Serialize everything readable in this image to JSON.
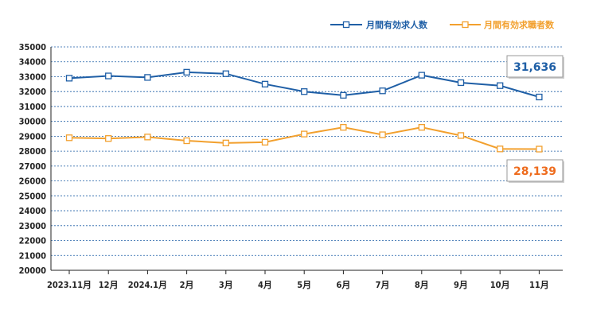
{
  "chart_data": {
    "type": "line",
    "categories": [
      "2023.11月",
      "12月",
      "2024.1月",
      "2月",
      "3月",
      "4月",
      "5月",
      "6月",
      "7月",
      "8月",
      "9月",
      "10月",
      "11月"
    ],
    "series": [
      {
        "name": "月間有効求人数",
        "color": "#1f5fa6",
        "values": [
          32900,
          33050,
          32950,
          33300,
          33200,
          32500,
          32000,
          31750,
          32050,
          33100,
          32600,
          32400,
          31636
        ]
      },
      {
        "name": "月間有効求職者数",
        "color": "#f2a02e",
        "values": [
          28900,
          28850,
          28950,
          28700,
          28550,
          28600,
          29150,
          29600,
          29100,
          29600,
          29050,
          28150,
          28139
        ]
      }
    ],
    "ylim": [
      20000,
      35000
    ],
    "yticks": [
      20000,
      21000,
      22000,
      23000,
      24000,
      25000,
      26000,
      27000,
      28000,
      29000,
      30000,
      31000,
      32000,
      33000,
      34000,
      35000
    ],
    "grid": true,
    "legend_position": "top-right",
    "callouts": [
      {
        "series": 0,
        "text": "31,636",
        "color": "#1f5fa6"
      },
      {
        "series": 1,
        "text": "28,139",
        "color": "#ee6c1e"
      }
    ]
  }
}
